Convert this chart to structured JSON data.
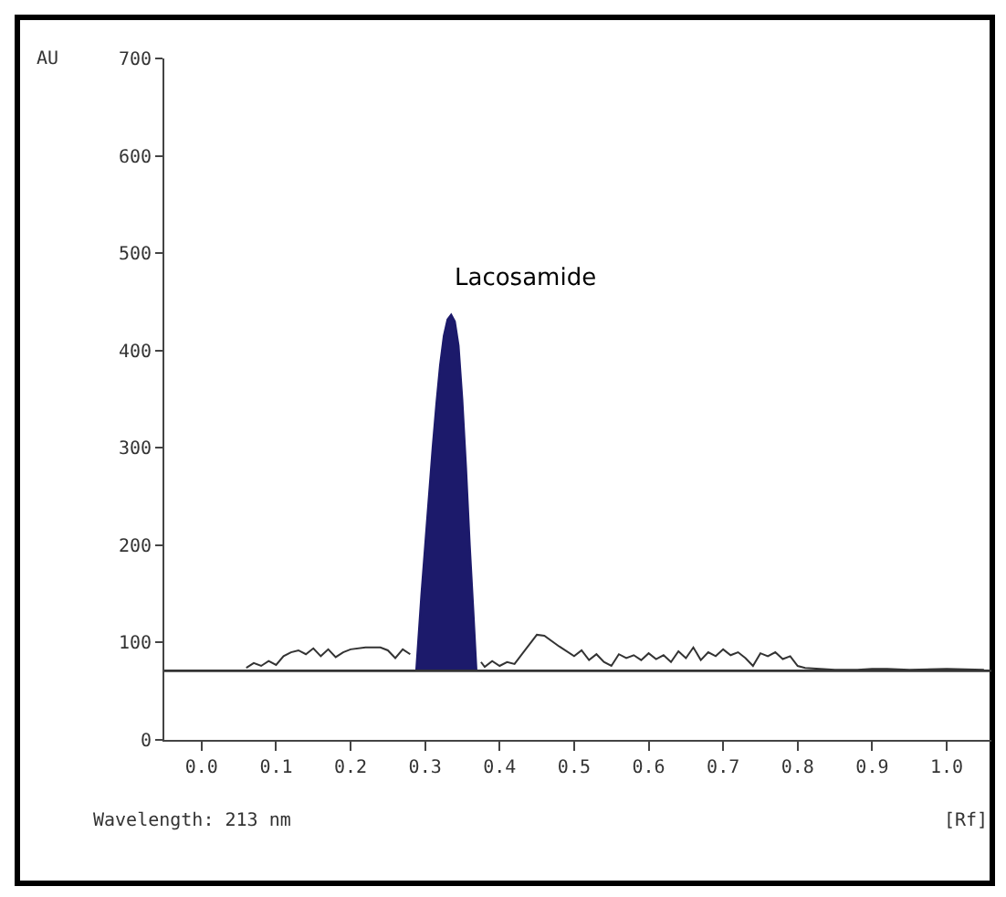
{
  "chart_data": {
    "type": "line",
    "ylabel": "AU",
    "xlabel": "[Rf]",
    "annotations": [
      {
        "text": "Lacosamide",
        "x": 0.335,
        "y": 437
      },
      "Wavelength: 213 nm"
    ],
    "xlim": [
      -0.05,
      1.06
    ],
    "ylim": [
      0,
      700
    ],
    "xticks": [
      {
        "value": 0,
        "label": "0.0"
      },
      0.1,
      0.2,
      0.3,
      0.4,
      0.5,
      0.6,
      0.7,
      0.8,
      0.9,
      {
        "value": 1,
        "label": "1.0"
      }
    ],
    "yticks": [
      0,
      100,
      200,
      300,
      400,
      500,
      600,
      700
    ],
    "grid": false,
    "legend": false,
    "marker": "none",
    "line_style": "solid",
    "ref_lines": [
      {
        "axis": "y",
        "value": 71,
        "label": null,
        "color": "#333333"
      }
    ],
    "series": [
      {
        "color": "#333333",
        "x": [
          0.06,
          0.07,
          0.08,
          0.09,
          0.1,
          0.11,
          0.12,
          0.13,
          0.14,
          0.15,
          0.16,
          0.17,
          0.18,
          0.19,
          0.2,
          0.22,
          0.24,
          0.25,
          0.26,
          0.27,
          0.28
        ],
        "values": [
          74,
          79,
          76,
          81,
          77,
          86,
          90,
          92,
          88,
          94,
          86,
          93,
          85,
          90,
          93,
          95,
          95,
          92,
          84,
          93,
          88
        ]
      },
      {
        "color": "#333333",
        "x": [
          0.375,
          0.38,
          0.39,
          0.4,
          0.41,
          0.42,
          0.43,
          0.45,
          0.46,
          0.48,
          0.5,
          0.51,
          0.52,
          0.53,
          0.54,
          0.55,
          0.56,
          0.57,
          0.58,
          0.59,
          0.6,
          0.61,
          0.62,
          0.63,
          0.64,
          0.65,
          0.66,
          0.67,
          0.68,
          0.69,
          0.7,
          0.71,
          0.72,
          0.73,
          0.74,
          0.75,
          0.76,
          0.77,
          0.78,
          0.79,
          0.8,
          0.81,
          0.83,
          0.85,
          0.88,
          0.9,
          0.92,
          0.95,
          1.0,
          1.05
        ],
        "values": [
          80,
          75,
          81,
          76,
          80,
          78,
          88,
          108,
          107,
          96,
          86,
          92,
          82,
          88,
          80,
          76,
          88,
          84,
          87,
          82,
          89,
          83,
          87,
          80,
          91,
          84,
          95,
          82,
          90,
          86,
          93,
          87,
          90,
          84,
          76,
          89,
          86,
          90,
          83,
          86,
          76,
          74,
          73,
          72,
          72,
          73,
          73,
          72,
          73,
          72
        ]
      },
      {
        "type": "area",
        "color": "#1c1a6b",
        "x": [
          0.288,
          0.295,
          0.3,
          0.305,
          0.31,
          0.315,
          0.32,
          0.325,
          0.33,
          0.335,
          0.34,
          0.345,
          0.35,
          0.355,
          0.36,
          0.365,
          0.369
        ],
        "values": [
          71,
          150,
          200,
          250,
          300,
          345,
          385,
          415,
          432,
          437,
          430,
          405,
          350,
          280,
          200,
          130,
          71
        ]
      }
    ]
  }
}
